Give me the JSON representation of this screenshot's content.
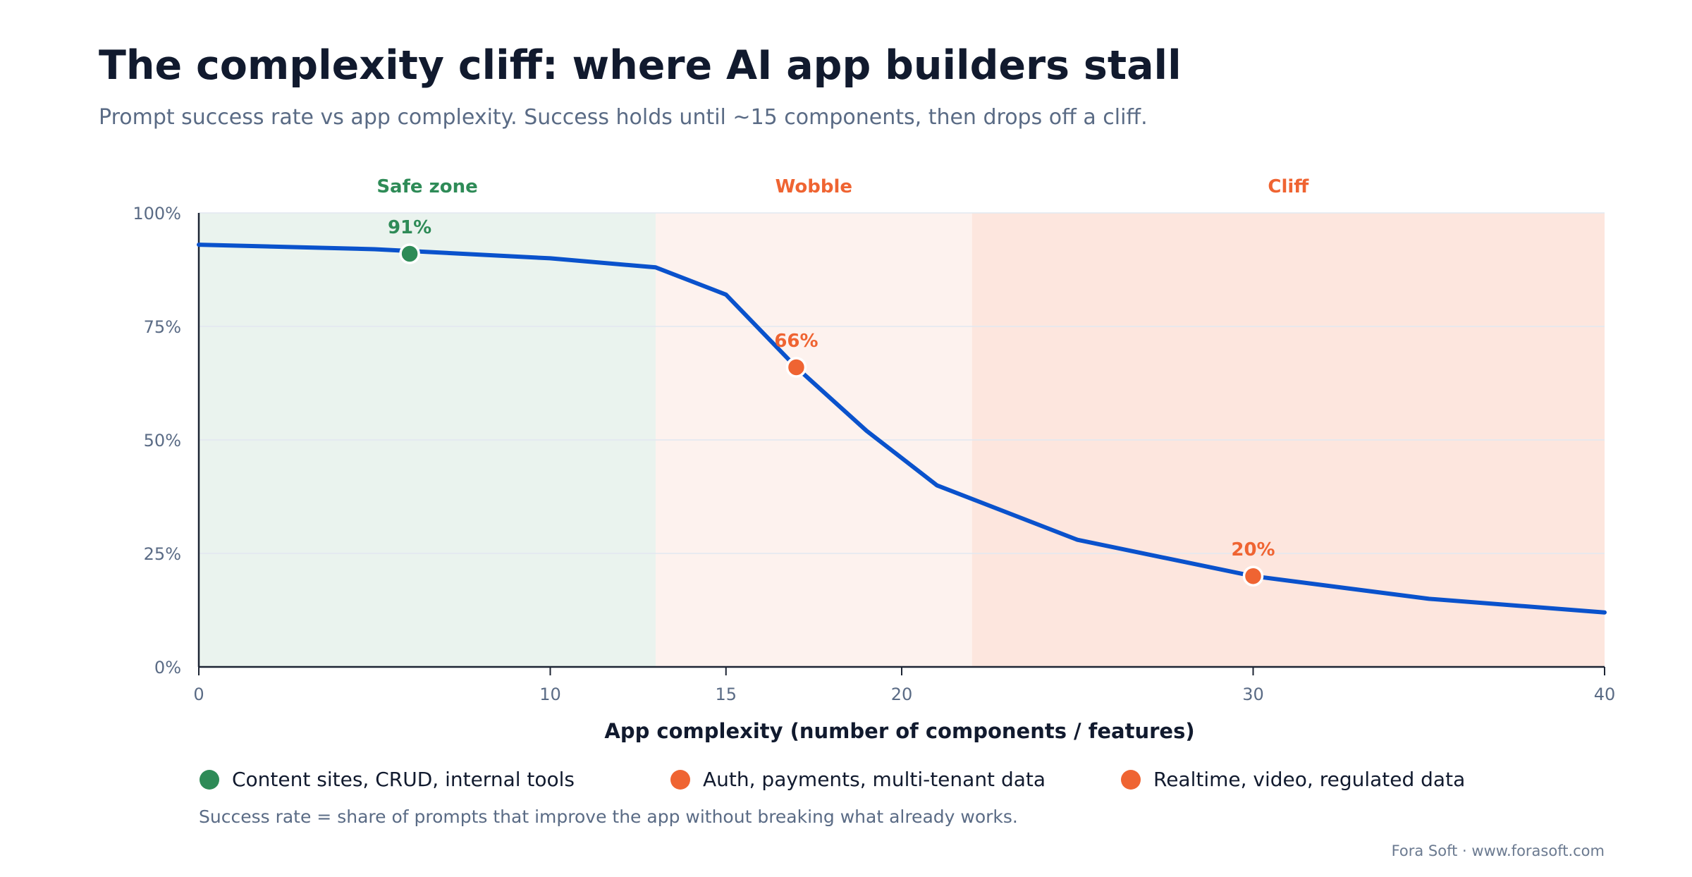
{
  "chart_data": {
    "type": "line",
    "title": "The complexity cliff: where AI app builders stall",
    "subtitle": "Prompt success rate vs app complexity. Success holds until ~15 components, then drops off a cliff.",
    "xlabel": "App complexity (number of components / features)",
    "ylabel": "",
    "xlim": [
      0,
      40
    ],
    "ylim": [
      0,
      100
    ],
    "x_ticks": [
      0,
      10,
      15,
      20,
      30,
      40
    ],
    "x_tick_labels": [
      "0",
      "10",
      "15",
      "20",
      "30",
      "40"
    ],
    "y_ticks": [
      0,
      25,
      50,
      75,
      100
    ],
    "y_tick_labels": [
      "0%",
      "25%",
      "50%",
      "75%",
      "100%"
    ],
    "grid": true,
    "zones": [
      {
        "label": "Safe zone",
        "from": 0,
        "to": 13,
        "fill": "#eaf3ee",
        "label_color": "#2e8b57"
      },
      {
        "label": "Wobble",
        "from": 13,
        "to": 22,
        "fill": "#fdf2ee",
        "label_color": "#ef6432"
      },
      {
        "label": "Cliff",
        "from": 22,
        "to": 40,
        "fill": "#fde6de",
        "label_color": "#ef6432"
      }
    ],
    "series": [
      {
        "x": [
          0,
          5,
          10,
          13,
          15,
          17,
          19,
          21,
          25,
          30,
          35,
          40
        ],
        "y": [
          93,
          92,
          90,
          88,
          82,
          66,
          52,
          40,
          28,
          20,
          15,
          12
        ],
        "color": "#0a52cc"
      }
    ],
    "highlights": [
      {
        "x": 6,
        "y": 91,
        "label": "91%",
        "color": "#2e8b57"
      },
      {
        "x": 17,
        "y": 66,
        "label": "66%",
        "color": "#ef6432"
      },
      {
        "x": 30,
        "y": 20,
        "label": "20%",
        "color": "#ef6432"
      }
    ],
    "legend_position": "bottom",
    "legend": [
      {
        "label": "Content sites, CRUD, internal tools",
        "color": "#2e8b57"
      },
      {
        "label": "Auth, payments, multi-tenant data",
        "color": "#ef6432"
      },
      {
        "label": "Realtime, video, regulated data",
        "color": "#ef6432"
      }
    ],
    "footnote": "Success rate = share of prompts that improve the app without breaking what already works.",
    "credit": "Fora Soft · www.forasoft.com"
  }
}
